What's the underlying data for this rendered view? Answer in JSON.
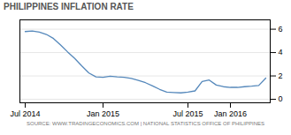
{
  "chart_data": {
    "type": "line",
    "title": "PHILIPPINES INFLATION RATE",
    "source": "SOURCE: WWW.TRADINGECONOMICS.COM | NATIONAL STATISTICS OFFICE OF PHILIPPINES",
    "categories": [
      "Jul 2014",
      null,
      null,
      null,
      null,
      null,
      null,
      null,
      null,
      null,
      null,
      "Jan 2015",
      null,
      null,
      null,
      null,
      null,
      null,
      null,
      null,
      null,
      null,
      null,
      "Jul 2015",
      null,
      null,
      null,
      null,
      null,
      "Jan 2016",
      null,
      null,
      null,
      null,
      null
    ],
    "values": [
      5.8,
      5.85,
      5.75,
      5.55,
      5.2,
      4.65,
      4.05,
      3.5,
      2.85,
      2.25,
      1.92,
      1.88,
      1.98,
      1.92,
      1.88,
      1.78,
      1.62,
      1.42,
      1.15,
      0.85,
      0.62,
      0.58,
      0.55,
      0.62,
      0.72,
      1.52,
      1.65,
      1.22,
      1.08,
      1.02,
      1.02,
      1.08,
      1.12,
      1.18,
      1.82
    ],
    "color": "#5588bb",
    "ylim": [
      -0.3,
      6.8
    ],
    "yticks": [
      0,
      2,
      4,
      6
    ],
    "grid": true
  }
}
